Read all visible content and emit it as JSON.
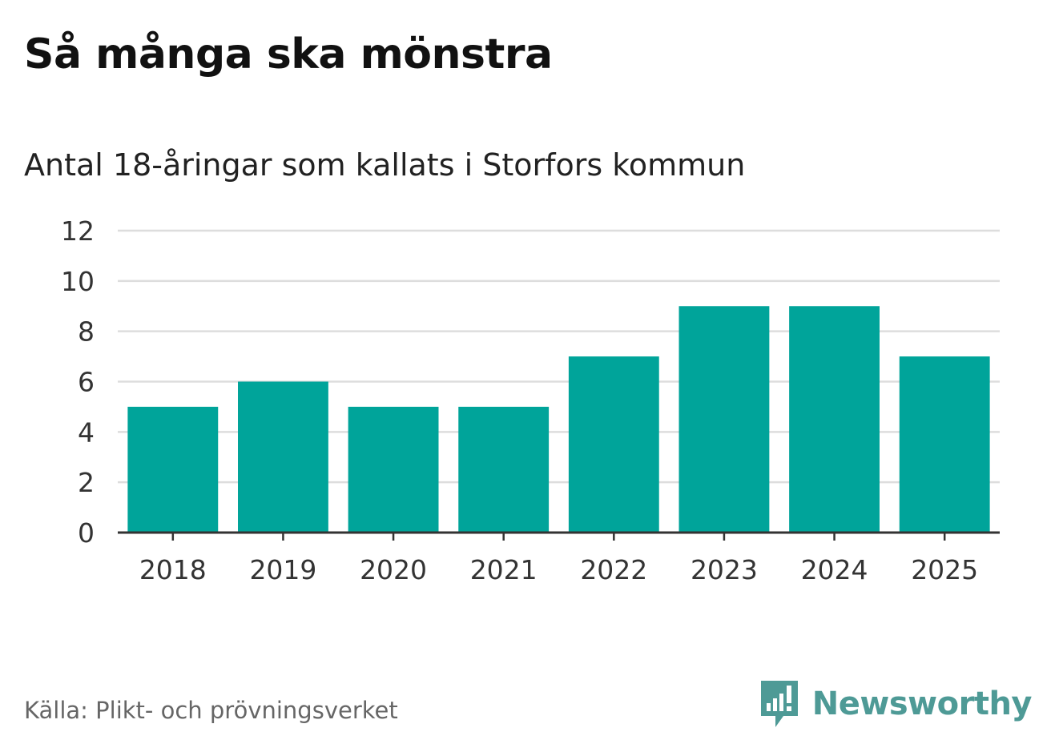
{
  "title": "Så många ska mönstra",
  "subtitle": "Antal 18-åringar som kallats i Storfors kommun",
  "source": "Källa: Plikt- och prövningsverket",
  "brand": {
    "name": "Newsworthy",
    "icon": "newsworthy-logo-icon",
    "color": "#4e9a96"
  },
  "chart_data": {
    "type": "bar",
    "categories": [
      "2018",
      "2019",
      "2020",
      "2021",
      "2022",
      "2023",
      "2024",
      "2025"
    ],
    "values": [
      5,
      6,
      5,
      5,
      7,
      9,
      9,
      7
    ],
    "xlabel": "",
    "ylabel": "",
    "ylim": [
      0,
      12
    ],
    "yticks": [
      0,
      2,
      4,
      6,
      8,
      10,
      12
    ],
    "grid": true,
    "legend": "none",
    "bar_color": "#00a49a"
  }
}
